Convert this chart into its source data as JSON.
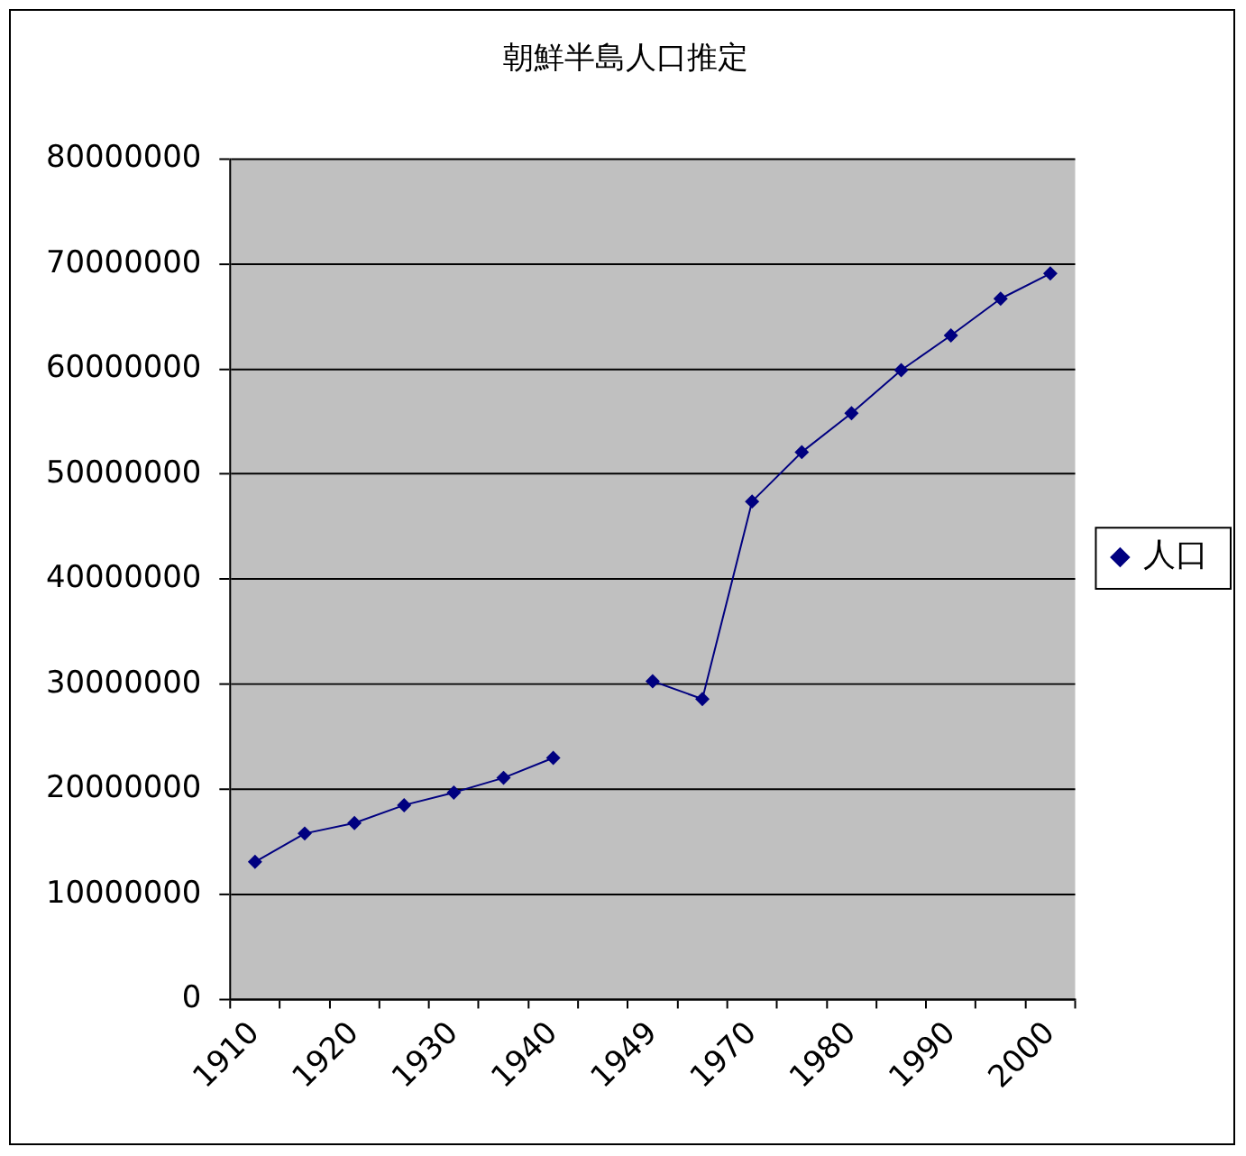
{
  "chart_data": {
    "type": "line",
    "title": "朝鮮半島人口推定",
    "categories": [
      "1910",
      null,
      "1920",
      null,
      "1930",
      null,
      "1940",
      null,
      "1949",
      null,
      "1970",
      null,
      "1980",
      null,
      "1990",
      null,
      "2000"
    ],
    "series": [
      {
        "name": "人口",
        "color": "#000080",
        "values": [
          13100000,
          15800000,
          16800000,
          18500000,
          19700000,
          21100000,
          23000000,
          null,
          30300000,
          28600000,
          47400000,
          52100000,
          55800000,
          59900000,
          63200000,
          66700000,
          69100000
        ]
      }
    ],
    "ylim": [
      0,
      80000000
    ],
    "yticks": [
      0,
      10000000,
      20000000,
      30000000,
      40000000,
      50000000,
      60000000,
      70000000,
      80000000
    ],
    "grid": "y",
    "legend": "right",
    "marker": "diamond",
    "line_style": "solid"
  }
}
